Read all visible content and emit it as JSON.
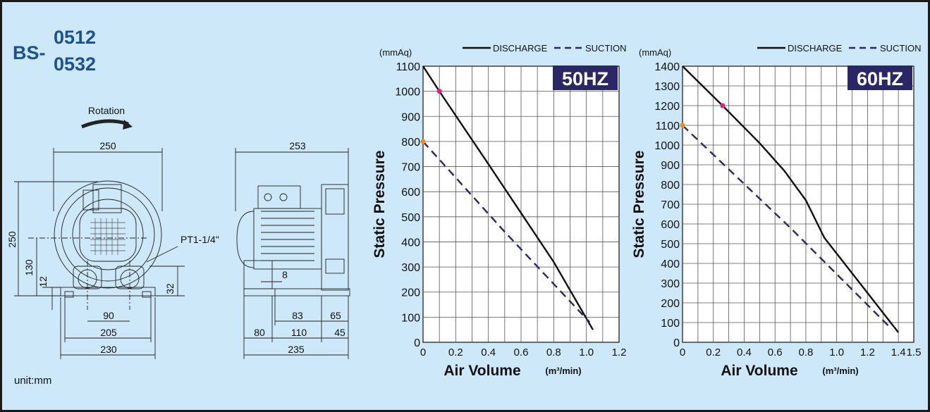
{
  "model": {
    "prefix": "BS-",
    "variant_1": "0512",
    "variant_2": "0532"
  },
  "unit_note": "unit:mm",
  "drawing": {
    "rotation_label": "Rotation",
    "port_label": "PT1-1/4\"",
    "front_dims": {
      "width_top": "250",
      "height_total": "250",
      "height_axis": "130",
      "base": "12",
      "outlet_height": "32",
      "port_pitch": "90",
      "foot_inner": "205",
      "foot_outer": "230"
    },
    "side_dims": {
      "width_top": "253",
      "gap": "8",
      "d83": "83",
      "d65": "65",
      "d80": "80",
      "d110": "110",
      "d45": "45",
      "d235": "235"
    }
  },
  "colors": {
    "background": "#cde8f8",
    "brand": "#1b5196",
    "badge": "#2b2766",
    "discharge": "#111111",
    "suction": "#2b2766",
    "marker_discharge": "#e0207a",
    "marker_suction": "#f08a1c"
  },
  "chart_data": [
    {
      "type": "line",
      "badge": "50HZ",
      "unit_label": "(mmAq)",
      "ylabel": "Static Pressure",
      "xlabel": "Air Volume",
      "xunit": "(m³/min)",
      "xlim": [
        0,
        1.2
      ],
      "ylim": [
        0,
        1100
      ],
      "xticks": [
        "0",
        "0.2",
        "0.4",
        "0.6",
        "0.8",
        "1.0",
        "1.2"
      ],
      "yticks": [
        "0",
        "100",
        "200",
        "300",
        "400",
        "500",
        "600",
        "700",
        "800",
        "900",
        "1000",
        "1100"
      ],
      "grid": true,
      "legend": "top",
      "series": [
        {
          "name": "DISCHARGE",
          "style": "solid",
          "x": [
            0,
            0.1,
            0.4,
            0.8,
            1.04
          ],
          "y": [
            1100,
            1000,
            710,
            320,
            50
          ]
        },
        {
          "name": "SUCTION",
          "style": "dashed",
          "x": [
            0,
            0.5,
            1.02
          ],
          "y": [
            800,
            440,
            80
          ]
        }
      ],
      "markers": [
        {
          "series": "DISCHARGE",
          "x": 0.1,
          "y": 1000
        },
        {
          "series": "SUCTION",
          "x": 0,
          "y": 800
        }
      ]
    },
    {
      "type": "line",
      "badge": "60HZ",
      "unit_label": "(mmAq)",
      "ylabel": "Static Pressure",
      "xlabel": "Air Volume",
      "xunit": "(m³/min)",
      "xlim": [
        0,
        1.5
      ],
      "ylim": [
        0,
        1400
      ],
      "xticks": [
        "0",
        "0.2",
        "0.4",
        "0.6",
        "0.8",
        "1.0",
        "1.2",
        "1.4",
        "1.5"
      ],
      "yticks": [
        "0",
        "100",
        "200",
        "300",
        "400",
        "500",
        "600",
        "700",
        "800",
        "900",
        "1000",
        "1100",
        "1200",
        "1300",
        "1400"
      ],
      "grid": true,
      "legend": "top",
      "series": [
        {
          "name": "DISCHARGE",
          "style": "solid",
          "x": [
            0,
            0.26,
            0.5,
            0.66,
            0.8,
            0.92,
            1.2,
            1.34,
            1.4
          ],
          "y": [
            1400,
            1200,
            1010,
            870,
            720,
            530,
            250,
            110,
            50
          ]
        },
        {
          "name": "SUCTION",
          "style": "dashed",
          "x": [
            0,
            0.7,
            1.34
          ],
          "y": [
            1100,
            580,
            80
          ]
        }
      ],
      "markers": [
        {
          "series": "DISCHARGE",
          "x": 0.26,
          "y": 1200
        },
        {
          "series": "SUCTION",
          "x": 0,
          "y": 1100
        }
      ]
    }
  ]
}
